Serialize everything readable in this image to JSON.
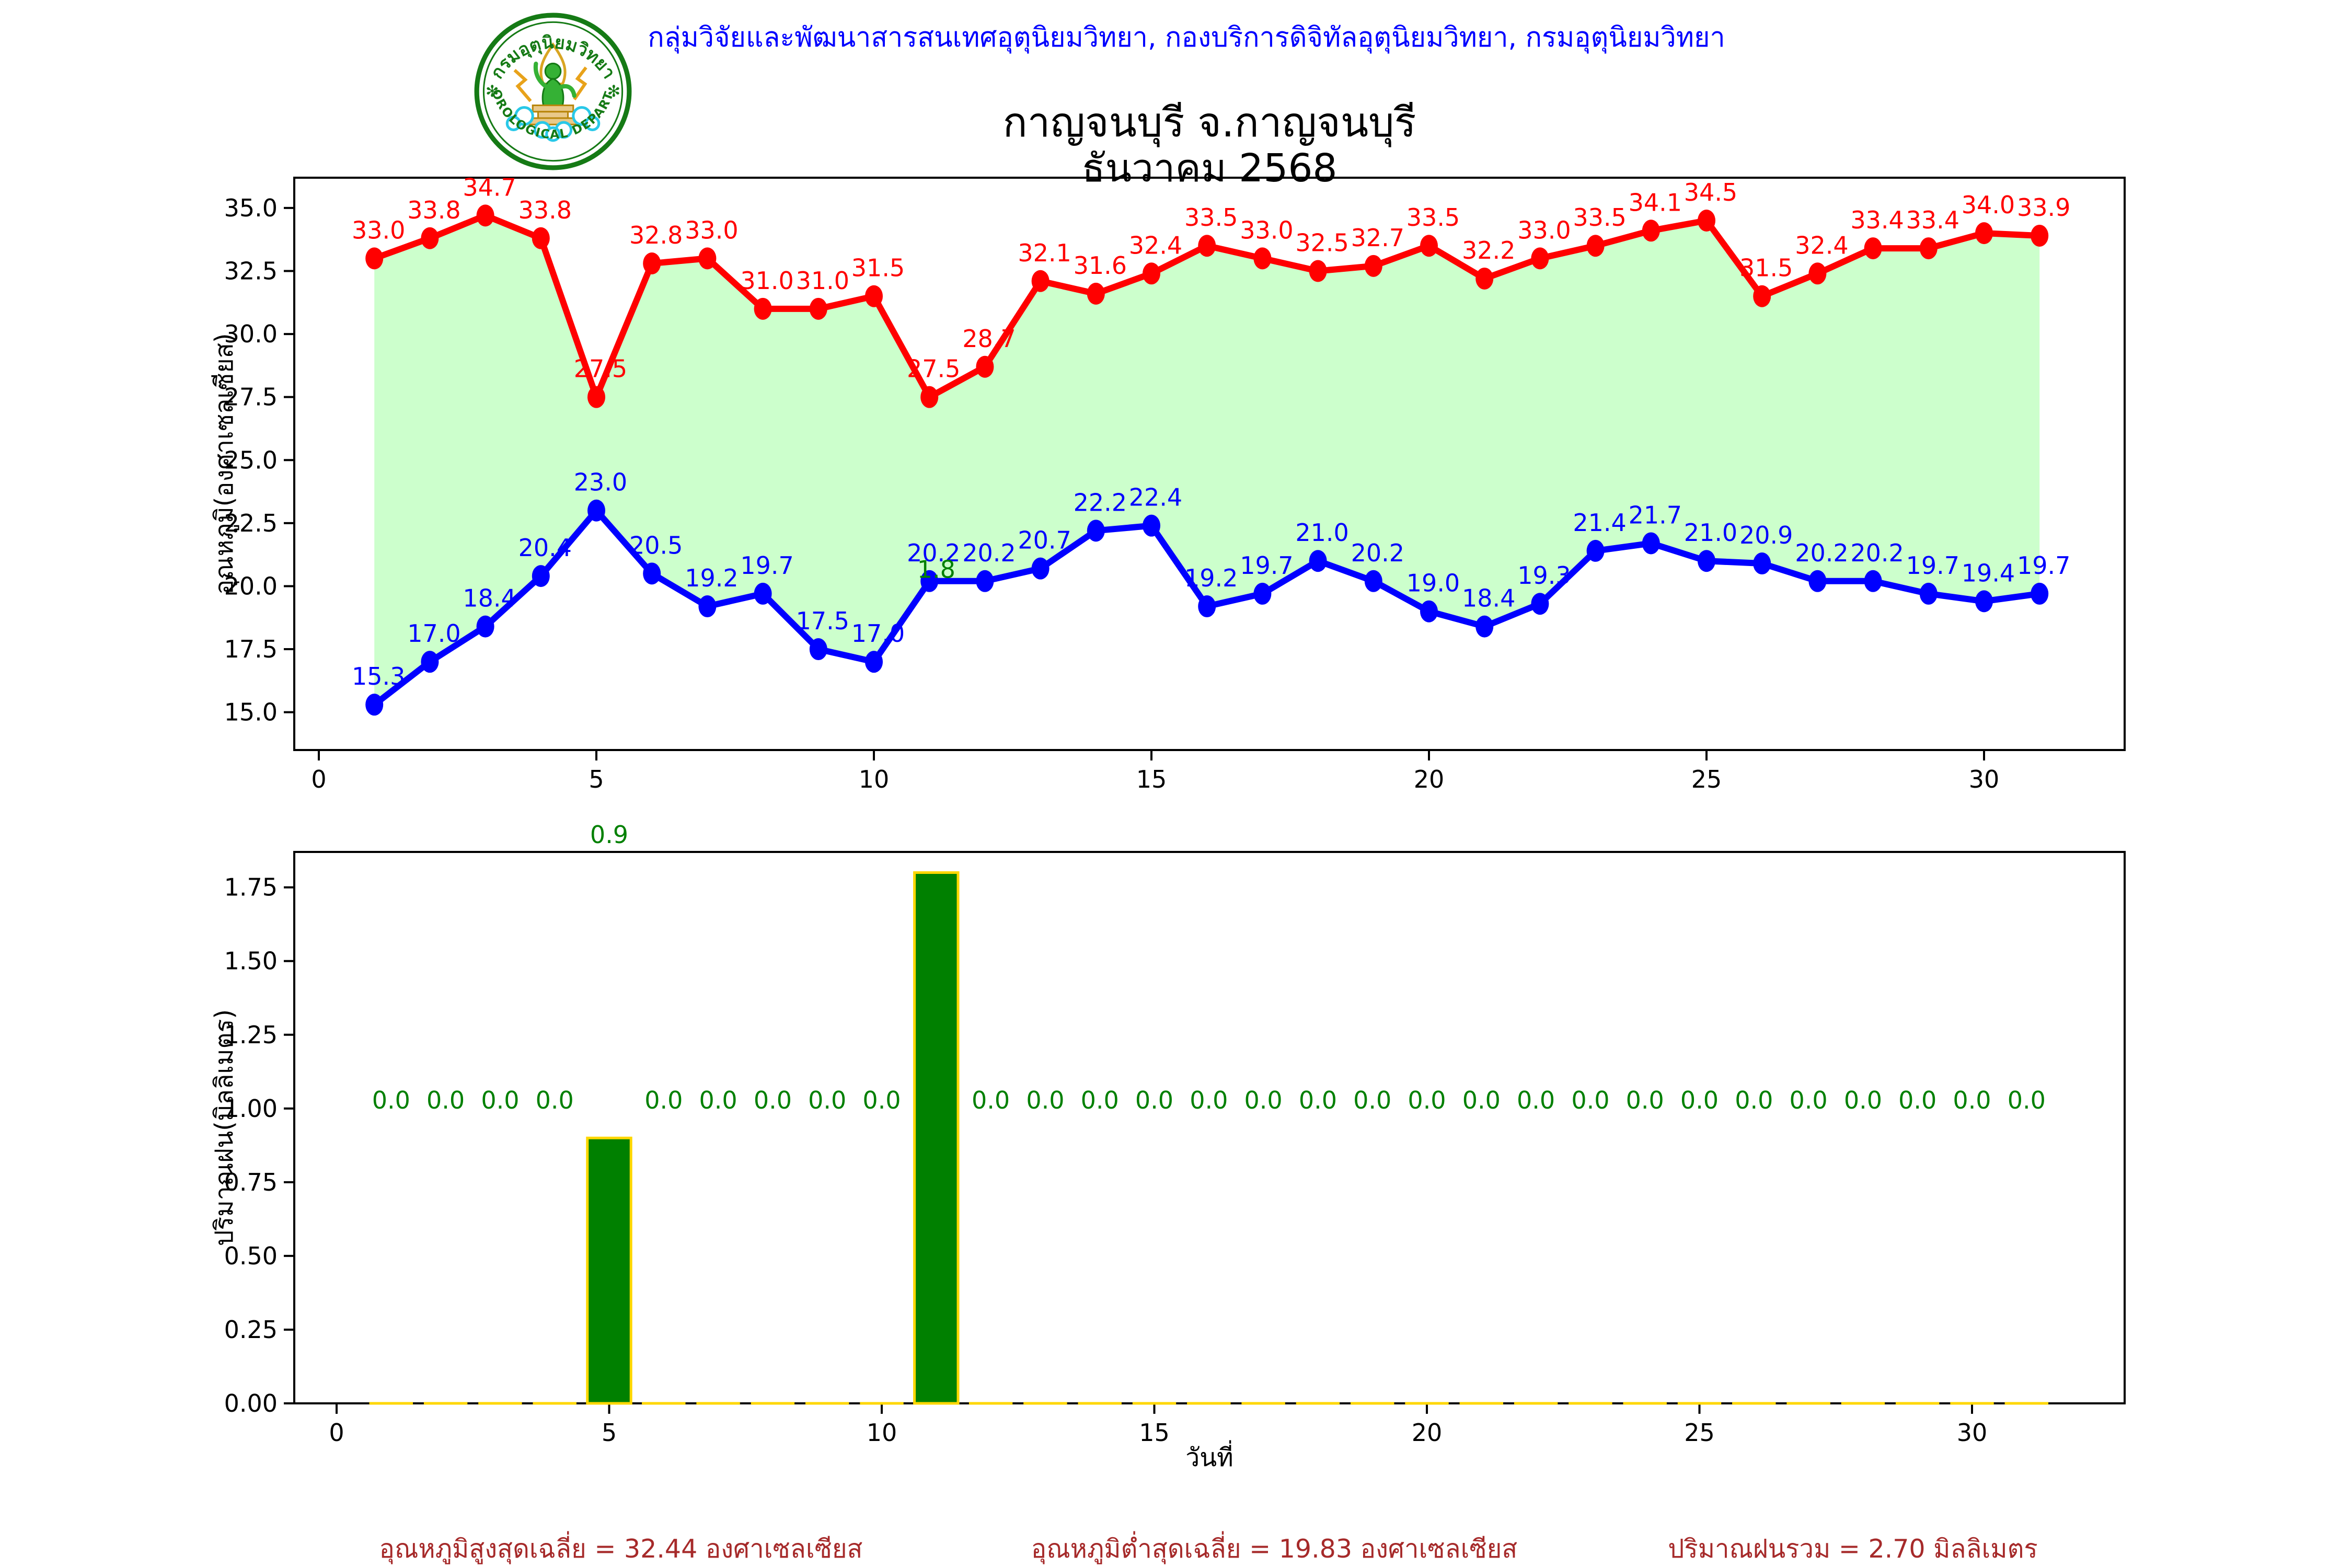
{
  "header": {
    "department_line": "กลุ่มวิจัยและพัฒนาสารสนเทศอุตุนิยมวิทยา, กองบริการดิจิทัลอุตุนิยมวิทยา, กรมอุตุนิยมวิทยา"
  },
  "logo": {
    "thai_arc_text": "กรมอุตุนิยมวิทยา",
    "english_arc_text": "METEOROLOGICAL DEPARTMENT"
  },
  "title": {
    "line1": "กาญจนบุรี จ.กาญจนบุรี",
    "line2": "ธันวาคม 2568"
  },
  "summary": {
    "max_avg": "อุณหภูมิสูงสุดเฉลี่ย = 32.44 องศาเซลเซียส",
    "min_avg": "อุณหภูมิต่ำสุดเฉลี่ย = 19.83 องศาเซลเซียส",
    "rain_total": "ปริมาณฝนรวม = 2.70 มิลลิเมตร"
  },
  "colors": {
    "header_text": "#0000ff",
    "title_text": "#000000",
    "summary_text": "#a62a2a",
    "max_line": "#ff0000",
    "min_line": "#0000ff",
    "band_fill": "#ccffcc",
    "bar_fill": "#008000",
    "bar_edge": "#ffd700",
    "rain_label": "#008000",
    "axis": "#000000"
  },
  "chart_data": [
    {
      "type": "line",
      "name": "temperature-chart",
      "ylabel": "อุณหภูมิ(องศาเซลเซียส)",
      "xlabel": "",
      "x": [
        1,
        2,
        3,
        4,
        5,
        6,
        7,
        8,
        9,
        10,
        11,
        12,
        13,
        14,
        15,
        16,
        17,
        18,
        19,
        20,
        21,
        22,
        23,
        24,
        25,
        26,
        27,
        28,
        29,
        30,
        31
      ],
      "series": [
        {
          "name": "max_temp",
          "color": "#ff0000",
          "values": [
            33.0,
            33.8,
            34.7,
            33.8,
            27.5,
            32.8,
            33.0,
            31.0,
            31.0,
            31.5,
            27.5,
            28.7,
            32.1,
            31.6,
            32.4,
            33.5,
            33.0,
            32.5,
            32.7,
            33.5,
            32.2,
            33.0,
            33.5,
            34.1,
            34.5,
            31.5,
            32.4,
            33.4,
            33.4,
            34.0,
            33.9
          ]
        },
        {
          "name": "min_temp",
          "color": "#0000ff",
          "values": [
            15.3,
            17.0,
            18.4,
            20.4,
            23.0,
            20.5,
            19.2,
            19.7,
            17.5,
            17.0,
            20.2,
            20.2,
            20.7,
            22.2,
            22.4,
            19.2,
            19.7,
            21.0,
            20.2,
            19.0,
            18.4,
            19.3,
            21.4,
            21.7,
            21.0,
            20.9,
            20.2,
            20.2,
            19.7,
            19.4,
            19.7
          ]
        }
      ],
      "fill_between": true,
      "fill_color": "#ccffcc",
      "y_ticks": [
        15.0,
        17.5,
        20.0,
        22.5,
        25.0,
        27.5,
        30.0,
        32.5,
        35.0
      ],
      "x_ticks": [
        0,
        5,
        10,
        15,
        20,
        25,
        30
      ],
      "ylim": [
        13.5,
        36.2
      ],
      "grid": false,
      "legend": "none"
    },
    {
      "type": "bar",
      "name": "rainfall-chart",
      "ylabel": "ปริมาณฝน(มิลลิเมตร)",
      "xlabel": "วันที่",
      "x": [
        1,
        2,
        3,
        4,
        5,
        6,
        7,
        8,
        9,
        10,
        11,
        12,
        13,
        14,
        15,
        16,
        17,
        18,
        19,
        20,
        21,
        22,
        23,
        24,
        25,
        26,
        27,
        28,
        29,
        30,
        31
      ],
      "values": [
        0.0,
        0.0,
        0.0,
        0.0,
        0.9,
        0.0,
        0.0,
        0.0,
        0.0,
        0.0,
        1.8,
        0.0,
        0.0,
        0.0,
        0.0,
        0.0,
        0.0,
        0.0,
        0.0,
        0.0,
        0.0,
        0.0,
        0.0,
        0.0,
        0.0,
        0.0,
        0.0,
        0.0,
        0.0,
        0.0,
        0.0
      ],
      "bar_color": "#008000",
      "bar_edge_color": "#ffd700",
      "label_color": "#008000",
      "label_offset_value": 1.0,
      "y_ticks": [
        0.0,
        0.25,
        0.5,
        0.75,
        1.0,
        1.25,
        1.5,
        1.75
      ],
      "x_ticks": [
        0,
        5,
        10,
        15,
        20,
        25,
        30
      ],
      "ylim": [
        0,
        1.87
      ],
      "grid": false,
      "legend": "none"
    }
  ]
}
